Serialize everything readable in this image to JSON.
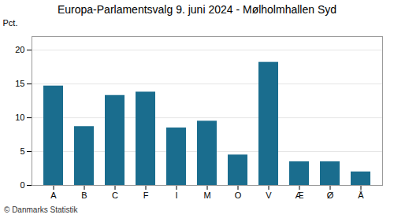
{
  "chart_data": {
    "type": "bar",
    "title": "Europa-Parlamentsvalg 9. juni 2024 - Mølholmhallen Syd",
    "categories": [
      "A",
      "B",
      "C",
      "F",
      "I",
      "M",
      "O",
      "V",
      "Æ",
      "Ø",
      "Å"
    ],
    "values": [
      14.7,
      8.7,
      13.3,
      13.8,
      8.5,
      9.5,
      4.5,
      18.2,
      3.5,
      3.5,
      2.0
    ],
    "color": "#1a6d8e",
    "ylabel": "Pct.",
    "ylim": [
      0,
      22
    ],
    "yticks": [
      0,
      5,
      10,
      15,
      20
    ],
    "grid": true,
    "annotations": [
      "© Danmarks Statistik"
    ]
  }
}
